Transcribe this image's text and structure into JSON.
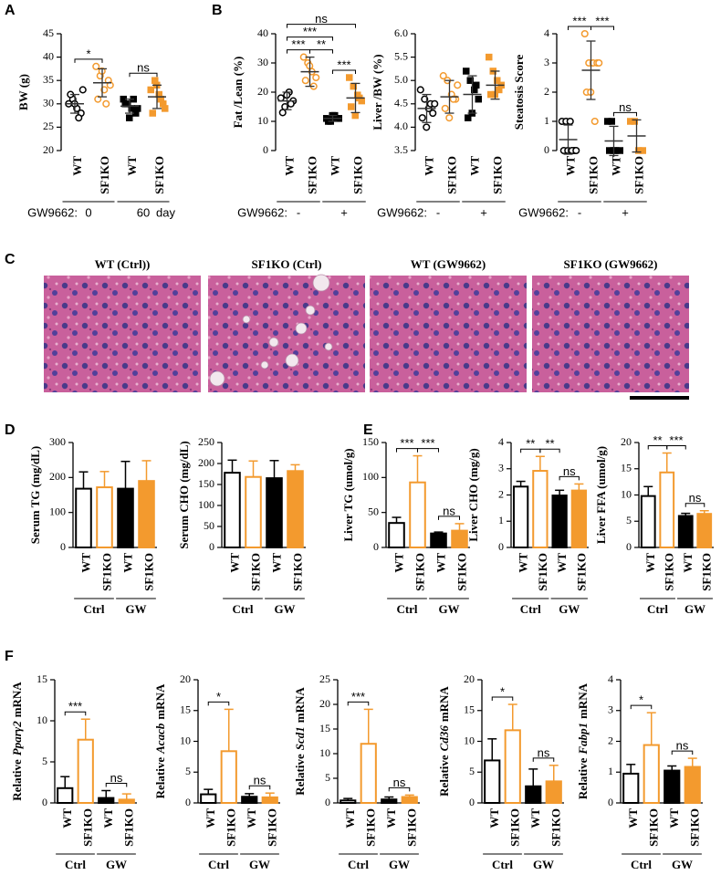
{
  "panel_labels": [
    "A",
    "B",
    "C",
    "D",
    "E",
    "F"
  ],
  "histology": {
    "titles": [
      "WT (Ctrl))",
      "SF1KO (Ctrl)",
      "WT (GW9662)",
      "SF1KO (GW9662)"
    ]
  },
  "chart_data": [
    {
      "type": "scatter",
      "ylabel": "BW (g)",
      "ylim": [
        20,
        45
      ],
      "yticks": [
        20,
        25,
        30,
        35,
        40,
        45
      ],
      "categories": [
        "WT",
        "SF1KO",
        "WT",
        "SF1KO"
      ],
      "points": [
        [
          30,
          31,
          29,
          28,
          32,
          30,
          27,
          33
        ],
        [
          38,
          36,
          33,
          35,
          31,
          37,
          30,
          34
        ],
        [
          31,
          30,
          29,
          28,
          30,
          27,
          31,
          29
        ],
        [
          33,
          35,
          32,
          30,
          28,
          34,
          31,
          29
        ]
      ],
      "values": [
        30,
        34.5,
        29.5,
        31.5
      ],
      "errors": [
        2,
        3,
        1.5,
        2.5
      ],
      "colors": [
        "#000000",
        "#f39a2e",
        "#000000",
        "#f39a2e"
      ],
      "filled": [
        false,
        false,
        true,
        true
      ],
      "shapes": [
        "circle",
        "circle",
        "square",
        "square"
      ],
      "group_prefix": "GW9662:",
      "groups": [
        "0",
        "60"
      ],
      "group_suffix": "day",
      "annotations": [
        {
          "text": "*",
          "between": [
            0,
            1
          ]
        },
        {
          "text": "ns",
          "between": [
            2,
            3
          ]
        }
      ]
    },
    {
      "type": "scatter",
      "ylabel": "Fat /Lean (%)",
      "ylim": [
        0,
        40
      ],
      "yticks": [
        0,
        10,
        20,
        30,
        40
      ],
      "categories": [
        "WT",
        "SF1KO",
        "WT",
        "SF1KO"
      ],
      "points": [
        [
          18,
          15,
          20,
          17,
          13,
          19,
          16
        ],
        [
          32,
          30,
          27,
          25,
          24,
          29,
          22
        ],
        [
          11,
          10,
          12,
          11,
          10,
          12,
          11
        ],
        [
          25,
          22,
          19,
          17,
          15,
          12,
          18
        ]
      ],
      "values": [
        17,
        27,
        11,
        18
      ],
      "errors": [
        3,
        5,
        1,
        5
      ],
      "colors": [
        "#000000",
        "#f39a2e",
        "#000000",
        "#f39a2e"
      ],
      "filled": [
        false,
        false,
        true,
        true
      ],
      "shapes": [
        "circle",
        "circle",
        "square",
        "square"
      ],
      "group_prefix": "GW9662:",
      "groups": [
        "-",
        "+"
      ],
      "annotations": [
        {
          "text": "***",
          "between": [
            0,
            1
          ]
        },
        {
          "text": "**",
          "between": [
            1,
            2
          ]
        },
        {
          "text": "***",
          "between": [
            2,
            3
          ]
        },
        {
          "text": "***",
          "between": [
            0,
            2
          ]
        },
        {
          "text": "ns",
          "between": [
            0,
            3
          ]
        }
      ]
    },
    {
      "type": "scatter",
      "ylabel": "Liver /BW (%)",
      "ylim": [
        3.5,
        6
      ],
      "yticks": [
        3.5,
        {
          "value": 4,
          "label": "4.0"
        },
        4.5,
        {
          "value": 5,
          "label": "5.0"
        },
        5.5,
        {
          "value": 6,
          "label": "6.0"
        }
      ],
      "categories": [
        "WT",
        "SF1KO",
        "WT",
        "SF1KO"
      ],
      "points": [
        [
          4.8,
          4.6,
          4.4,
          4.3,
          4.2,
          4.0,
          4.5,
          4.5
        ],
        [
          5.1,
          5.0,
          4.7,
          4.6,
          4.4,
          4.2,
          4.6,
          4.9
        ],
        [
          5.2,
          5.0,
          4.8,
          4.6,
          4.2,
          4.3,
          4.9
        ],
        [
          5.5,
          5.2,
          5.0,
          4.9,
          4.7,
          4.7,
          4.8
        ]
      ],
      "values": [
        4.4,
        4.65,
        4.7,
        4.9
      ],
      "errors": [
        0.3,
        0.35,
        0.4,
        0.3
      ],
      "colors": [
        "#000000",
        "#f39a2e",
        "#000000",
        "#f39a2e"
      ],
      "filled": [
        false,
        false,
        true,
        true
      ],
      "shapes": [
        "circle",
        "circle",
        "square",
        "square"
      ],
      "group_prefix": "GW9662:",
      "groups": [
        "-",
        "+"
      ],
      "annotations": []
    },
    {
      "type": "scatter",
      "ylabel": "Steatosis Score",
      "ylim": [
        0,
        4
      ],
      "yticks": [
        0,
        1,
        2,
        3,
        4
      ],
      "categories": [
        "WT",
        "SF1KO",
        "WT",
        "SF1KO"
      ],
      "points": [
        [
          1,
          1,
          1,
          0,
          0,
          0,
          0,
          0
        ],
        [
          4,
          3,
          3,
          3,
          2,
          2,
          1,
          3
        ],
        [
          1,
          1,
          0,
          0,
          0,
          0
        ],
        [
          1,
          1,
          0,
          0
        ]
      ],
      "values": [
        0.375,
        2.75,
        0.33,
        0.5
      ],
      "errors": [
        0.5,
        1,
        0.5,
        0.55
      ],
      "colors": [
        "#000000",
        "#f39a2e",
        "#000000",
        "#f39a2e"
      ],
      "filled": [
        false,
        false,
        true,
        true
      ],
      "shapes": [
        "circle",
        "circle",
        "square",
        "square"
      ],
      "group_prefix": "GW9662:",
      "groups": [
        "-",
        "+"
      ],
      "annotations": [
        {
          "text": "***",
          "between": [
            0,
            1
          ]
        },
        {
          "text": "***",
          "between": [
            1,
            2
          ]
        },
        {
          "text": "ns",
          "between": [
            2,
            3
          ]
        }
      ]
    },
    {
      "type": "bar",
      "ylabel": "Serum TG (mg/dL)",
      "ylim": [
        0,
        300
      ],
      "yticks": [
        0,
        100,
        200,
        300
      ],
      "categories": [
        "WT",
        "SF1KO",
        "WT",
        "SF1KO"
      ],
      "values": [
        168,
        172,
        168,
        190
      ],
      "errors": [
        48,
        45,
        78,
        58
      ],
      "colors": [
        "#000000",
        "#f39a2e",
        "#000000",
        "#f39a2e"
      ],
      "filled": [
        false,
        false,
        true,
        true
      ],
      "groups": [
        "Ctrl",
        "GW"
      ],
      "annotations": []
    },
    {
      "type": "bar",
      "ylabel": "Serum CHO (mg/dL)",
      "ylim": [
        0,
        250
      ],
      "yticks": [
        0,
        50,
        100,
        150,
        200,
        250
      ],
      "categories": [
        "WT",
        "SF1KO",
        "WT",
        "SF1KO"
      ],
      "values": [
        178,
        168,
        165,
        182
      ],
      "errors": [
        30,
        38,
        42,
        15
      ],
      "colors": [
        "#000000",
        "#f39a2e",
        "#000000",
        "#f39a2e"
      ],
      "filled": [
        false,
        false,
        true,
        true
      ],
      "groups": [
        "Ctrl",
        "GW"
      ],
      "annotations": []
    },
    {
      "type": "bar",
      "ylabel": "Liver TG (umol/g)",
      "ylim": [
        0,
        150
      ],
      "yticks": [
        0,
        50,
        100,
        150
      ],
      "categories": [
        "WT",
        "SF1KO",
        "WT",
        "SF1KO"
      ],
      "values": [
        35,
        93,
        20,
        24
      ],
      "errors": [
        8,
        38,
        2,
        10
      ],
      "colors": [
        "#000000",
        "#f39a2e",
        "#000000",
        "#f39a2e"
      ],
      "filled": [
        false,
        false,
        true,
        true
      ],
      "groups": [
        "Ctrl",
        "GW"
      ],
      "annotations": [
        {
          "text": "***",
          "between": [
            0,
            1
          ]
        },
        {
          "text": "***",
          "between": [
            1,
            2
          ]
        },
        {
          "text": "ns",
          "between": [
            2,
            3
          ]
        }
      ]
    },
    {
      "type": "bar",
      "ylabel": "Liver CHO (mg/g)",
      "ylim": [
        0,
        4
      ],
      "yticks": [
        0,
        1,
        2,
        3,
        4
      ],
      "categories": [
        "WT",
        "SF1KO",
        "WT",
        "SF1KO"
      ],
      "values": [
        2.32,
        2.92,
        1.98,
        2.17
      ],
      "errors": [
        0.2,
        0.55,
        0.2,
        0.25
      ],
      "colors": [
        "#000000",
        "#f39a2e",
        "#000000",
        "#f39a2e"
      ],
      "filled": [
        false,
        false,
        true,
        true
      ],
      "groups": [
        "Ctrl",
        "GW"
      ],
      "annotations": [
        {
          "text": "**",
          "between": [
            0,
            1
          ]
        },
        {
          "text": "**",
          "between": [
            1,
            2
          ]
        },
        {
          "text": "ns",
          "between": [
            2,
            3
          ]
        }
      ]
    },
    {
      "type": "bar",
      "ylabel": "Liver FFA (umol/g)",
      "ylim": [
        0,
        20
      ],
      "yticks": [
        0,
        5,
        10,
        15,
        20
      ],
      "categories": [
        "WT",
        "SF1KO",
        "WT",
        "SF1KO"
      ],
      "values": [
        9.8,
        14.3,
        6.0,
        6.4
      ],
      "errors": [
        1.8,
        3.7,
        0.5,
        0.6
      ],
      "colors": [
        "#000000",
        "#f39a2e",
        "#000000",
        "#f39a2e"
      ],
      "filled": [
        false,
        false,
        true,
        true
      ],
      "groups": [
        "Ctrl",
        "GW"
      ],
      "annotations": [
        {
          "text": "**",
          "between": [
            0,
            1
          ]
        },
        {
          "text": "***",
          "between": [
            1,
            2
          ]
        },
        {
          "text": "ns",
          "between": [
            2,
            3
          ]
        }
      ]
    },
    {
      "type": "bar",
      "ylabel": [
        "Relative",
        "Pparγ2",
        "mRNA"
      ],
      "ylim": [
        0,
        15
      ],
      "yticks": [
        0,
        5,
        10,
        15
      ],
      "categories": [
        "WT",
        "SF1KO",
        "WT",
        "SF1KO"
      ],
      "values": [
        1.8,
        7.7,
        0.6,
        0.4
      ],
      "errors": [
        1.4,
        2.5,
        0.9,
        0.7
      ],
      "colors": [
        "#000000",
        "#f39a2e",
        "#000000",
        "#f39a2e"
      ],
      "filled": [
        false,
        false,
        true,
        true
      ],
      "groups": [
        "Ctrl",
        "GW"
      ],
      "annotations": [
        {
          "text": "***",
          "between": [
            0,
            1
          ]
        },
        {
          "text": "ns",
          "between": [
            2,
            3
          ]
        }
      ]
    },
    {
      "type": "bar",
      "ylabel": [
        "Relative",
        "Acacb",
        "mRNA"
      ],
      "ylim": [
        0,
        20
      ],
      "yticks": [
        0,
        5,
        10,
        15,
        20
      ],
      "categories": [
        "WT",
        "SF1KO",
        "WT",
        "SF1KO"
      ],
      "values": [
        1.4,
        8.4,
        1.0,
        0.9
      ],
      "errors": [
        0.8,
        6.8,
        0.5,
        0.7
      ],
      "colors": [
        "#000000",
        "#f39a2e",
        "#000000",
        "#f39a2e"
      ],
      "filled": [
        false,
        false,
        true,
        true
      ],
      "groups": [
        "Ctrl",
        "GW"
      ],
      "annotations": [
        {
          "text": "*",
          "between": [
            0,
            1
          ]
        },
        {
          "text": "ns",
          "between": [
            2,
            3
          ]
        }
      ]
    },
    {
      "type": "bar",
      "ylabel": [
        "Relative",
        "Scd1",
        "mRNA"
      ],
      "ylim": [
        0,
        25
      ],
      "yticks": [
        0,
        5,
        10,
        15,
        20,
        25
      ],
      "categories": [
        "WT",
        "SF1KO",
        "WT",
        "SF1KO"
      ],
      "values": [
        0.5,
        12,
        0.7,
        1.2
      ],
      "errors": [
        0.4,
        7,
        0.5,
        0.4
      ],
      "colors": [
        "#000000",
        "#f39a2e",
        "#000000",
        "#f39a2e"
      ],
      "filled": [
        false,
        false,
        true,
        true
      ],
      "groups": [
        "Ctrl",
        "GW"
      ],
      "annotations": [
        {
          "text": "***",
          "between": [
            0,
            1
          ]
        },
        {
          "text": "ns",
          "between": [
            2,
            3
          ]
        }
      ]
    },
    {
      "type": "bar",
      "ylabel": [
        "Relative",
        "Cd36",
        "mRNA"
      ],
      "ylim": [
        0,
        20
      ],
      "yticks": [
        0,
        5,
        10,
        15,
        20
      ],
      "categories": [
        "WT",
        "SF1KO",
        "WT",
        "SF1KO"
      ],
      "values": [
        6.9,
        11.8,
        2.7,
        3.5
      ],
      "errors": [
        3.5,
        4.2,
        2.8,
        2.6
      ],
      "colors": [
        "#000000",
        "#f39a2e",
        "#000000",
        "#f39a2e"
      ],
      "filled": [
        false,
        false,
        true,
        true
      ],
      "groups": [
        "Ctrl",
        "GW"
      ],
      "annotations": [
        {
          "text": "*",
          "between": [
            0,
            1
          ]
        },
        {
          "text": "ns",
          "between": [
            2,
            3
          ]
        }
      ]
    },
    {
      "type": "bar",
      "ylabel": [
        "Relative",
        "Fabp1",
        "mRNA"
      ],
      "ylim": [
        0,
        4
      ],
      "yticks": [
        0,
        1,
        2,
        3,
        4
      ],
      "categories": [
        "WT",
        "SF1KO",
        "WT",
        "SF1KO"
      ],
      "values": [
        0.95,
        1.88,
        1.05,
        1.17
      ],
      "errors": [
        0.3,
        1.05,
        0.15,
        0.28
      ],
      "colors": [
        "#000000",
        "#f39a2e",
        "#000000",
        "#f39a2e"
      ],
      "filled": [
        false,
        false,
        true,
        true
      ],
      "groups": [
        "Ctrl",
        "GW"
      ],
      "annotations": [
        {
          "text": "*",
          "between": [
            0,
            1
          ]
        },
        {
          "text": "ns",
          "between": [
            2,
            3
          ]
        }
      ]
    }
  ]
}
